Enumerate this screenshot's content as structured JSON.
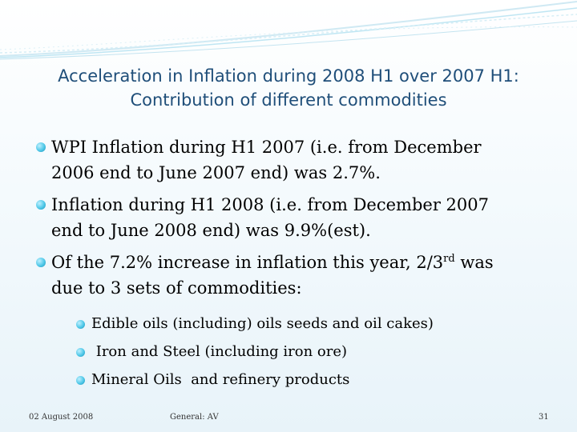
{
  "title": {
    "line1": "Acceleration in Inflation during 2008 H1 over 2007 H1:",
    "line2": "Contribution of different commodities"
  },
  "bullets": {
    "b1": {
      "line1": "WPI Inflation during H1 2007 (i.e. from December",
      "line2": "2006 end to June 2007 end) was 2.7%."
    },
    "b2": {
      "line1": "Inflation during H1 2008 (i.e. from December 2007",
      "line2": "end to June 2008 end) was 9.9%(est)."
    },
    "b3": {
      "line1_pre": "Of the 7.2% increase in inflation this year, 2/3",
      "line1_sup": "rd",
      "line1_post": " was",
      "line2": "due to 3 sets of commodities:"
    },
    "sub": [
      "Edible oils (including) oils seeds and oil cakes)",
      " Iron and Steel (including iron ore)",
      "Mineral Oils  and refinery products"
    ]
  },
  "footer": {
    "date": "02 August 2008",
    "author": "General: AV",
    "page": "31"
  },
  "colors": {
    "title": "#1f4e79",
    "bullet": "#4fc8e8",
    "wave": "#bfe6f3"
  }
}
